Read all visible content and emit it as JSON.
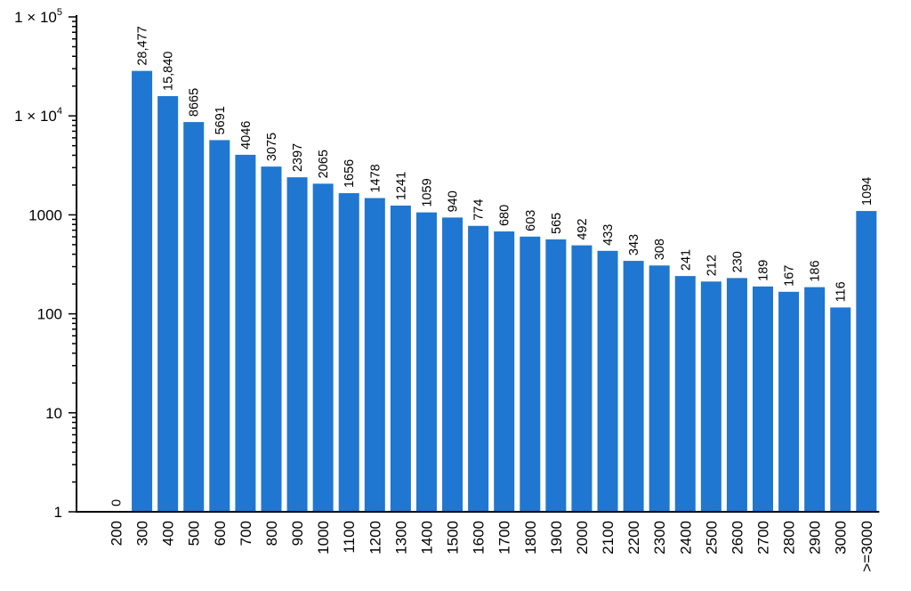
{
  "chart_data": {
    "type": "bar",
    "scale": "log",
    "ylim": [
      1,
      100000
    ],
    "bar_color": "#1f77d1",
    "categories": [
      "200",
      "300",
      "400",
      "500",
      "600",
      "700",
      "800",
      "900",
      "1000",
      "1100",
      "1200",
      "1300",
      "1400",
      "1500",
      "1600",
      "1700",
      "1800",
      "1900",
      "2000",
      "2100",
      "2200",
      "2300",
      "2400",
      "2500",
      "2600",
      "2700",
      "2800",
      "2900",
      "3000",
      ">=3000"
    ],
    "values": [
      0,
      28477,
      15840,
      8665,
      5691,
      4046,
      3075,
      2397,
      2065,
      1656,
      1478,
      1241,
      1059,
      940,
      774,
      680,
      603,
      565,
      492,
      433,
      343,
      308,
      241,
      212,
      230,
      189,
      167,
      186,
      116,
      1094
    ],
    "data_labels": [
      "0",
      "28,477",
      "15,840",
      "8665",
      "5691",
      "4046",
      "3075",
      "2397",
      "2065",
      "1656",
      "1478",
      "1241",
      "1059",
      "940",
      "774",
      "680",
      "603",
      "565",
      "492",
      "433",
      "343",
      "308",
      "241",
      "212",
      "230",
      "189",
      "167",
      "186",
      "116",
      "1094"
    ],
    "yticks": [
      {
        "value": 1,
        "label": "1"
      },
      {
        "value": 10,
        "label": "10"
      },
      {
        "value": 100,
        "label": "100"
      },
      {
        "value": 1000,
        "label": "1000"
      },
      {
        "value": 10000,
        "label": "1 × 10",
        "sup": "4"
      },
      {
        "value": 100000,
        "label": "1 × 10",
        "sup": "5"
      }
    ],
    "title": "",
    "xlabel": "",
    "ylabel": ""
  }
}
